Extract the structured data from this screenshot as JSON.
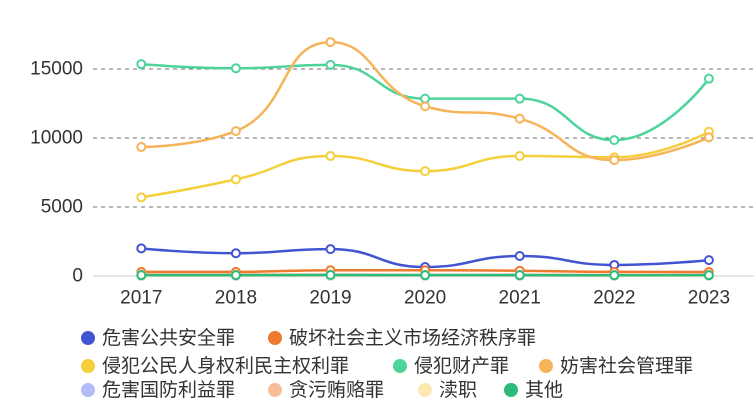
{
  "chart_data": {
    "type": "line",
    "x": [
      "2017",
      "2018",
      "2019",
      "2020",
      "2021",
      "2022",
      "2023"
    ],
    "yticks": [
      0,
      5000,
      10000,
      15000
    ],
    "ylim": [
      0,
      20000
    ],
    "grid": true,
    "legend_position": "bottom",
    "series": [
      {
        "name": "危害公共安全罪",
        "color": "#4254d1",
        "values": [
          2000,
          1650,
          1950,
          650,
          1450,
          800,
          1150
        ]
      },
      {
        "name": "破坏社会主义市场经济秩序罪",
        "color": "#ee7a30",
        "values": [
          300,
          300,
          420,
          420,
          380,
          300,
          290
        ]
      },
      {
        "name": "侵犯公民人身权利民主权利罪",
        "color": "#f5cf3a",
        "values": [
          5700,
          7000,
          8700,
          7600,
          8700,
          8600,
          10450
        ]
      },
      {
        "name": "侵犯财产罪",
        "color": "#4dd49a",
        "values": [
          15350,
          15050,
          15300,
          12850,
          12850,
          9850,
          14300
        ]
      },
      {
        "name": "妨害社会管理罪",
        "color": "#f6b45a",
        "values": [
          9350,
          10500,
          16950,
          12300,
          11400,
          8400,
          10050
        ]
      },
      {
        "name": "危害国防利益罪",
        "color": "#b3bcf6",
        "values": [
          5,
          5,
          5,
          5,
          5,
          5,
          5
        ]
      },
      {
        "name": "贪污贿赂罪",
        "color": "#f7bd96",
        "values": [
          120,
          110,
          110,
          90,
          100,
          80,
          90
        ]
      },
      {
        "name": "渎职",
        "color": "#fde8b0",
        "values": [
          30,
          30,
          30,
          25,
          25,
          20,
          20
        ]
      },
      {
        "name": "其他",
        "color": "#2dbb7b",
        "values": [
          60,
          60,
          70,
          60,
          60,
          50,
          60
        ]
      }
    ]
  }
}
